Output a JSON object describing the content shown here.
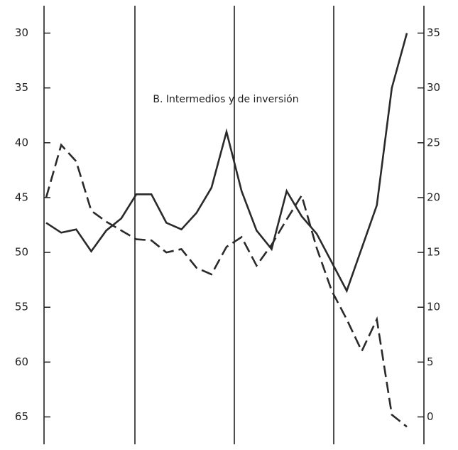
{
  "chart_data": {
    "type": "line",
    "title": "B. Intermedios y de inversión",
    "categories": [
      null,
      null,
      null,
      null,
      null,
      null,
      null,
      null,
      null,
      null,
      null,
      null,
      null,
      null,
      null,
      null,
      null,
      null,
      null,
      null,
      null,
      null,
      null,
      null,
      null
    ],
    "series": [
      {
        "color": "#2a2a2a",
        "dash": "solid",
        "axis": "y",
        "values": [
          47.3,
          48.2,
          47.9,
          49.9,
          48.0,
          46.9,
          44.7,
          44.7,
          47.3,
          47.9,
          46.4,
          44.1,
          39.0,
          44.4,
          48.0,
          49.7,
          44.4,
          46.7,
          48.3,
          50.9,
          53.5,
          49.6,
          45.7,
          35.0,
          30.0
        ]
      },
      {
        "color": "#2a2a2a",
        "dash": "dashed",
        "axis": "y2",
        "values": [
          20.0,
          24.8,
          23.3,
          18.8,
          17.8,
          17.0,
          16.2,
          16.1,
          15.0,
          15.3,
          13.6,
          13.0,
          15.5,
          16.4,
          13.8,
          15.7,
          18.0,
          20.2,
          15.4,
          11.5,
          8.9,
          6.0,
          8.9,
          0.2,
          -0.9
        ]
      }
    ],
    "ylim": [
      67.5,
      27.5
    ],
    "yticks": [
      30,
      35,
      40,
      45,
      50,
      55,
      60,
      65
    ],
    "y2lim": [
      -2.5,
      37.5
    ],
    "y2ticks": [
      35,
      30,
      25,
      20,
      15,
      10,
      5,
      0
    ]
  }
}
